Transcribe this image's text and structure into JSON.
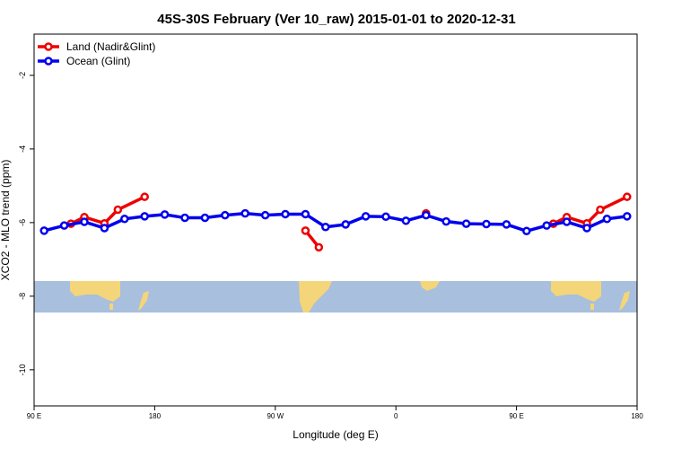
{
  "chart_data": {
    "type": "line",
    "title": "45S-30S February (Ver 10_raw)   2015-01-01 to 2020-12-31",
    "xlabel": "Longitude (deg E)",
    "ylabel": "XCO2 - MLO trend (ppm)",
    "xlim": [
      90,
      540
    ],
    "ylim": [
      -10.98,
      -0.88
    ],
    "xticks": [
      {
        "value": 90,
        "label": "90 E"
      },
      {
        "value": 180,
        "label": "180"
      },
      {
        "value": 270,
        "label": "90 W"
      },
      {
        "value": 360,
        "label": "0"
      },
      {
        "value": 450,
        "label": "90 E"
      },
      {
        "value": 540,
        "label": "180"
      }
    ],
    "yticks": [
      -2,
      -4,
      -6,
      -8,
      -10
    ],
    "legend": "top-left",
    "series": [
      {
        "name": "Land (Nadir&Glint)",
        "color": "#ee0000",
        "x": [
          117.5,
          127.5,
          142.5,
          152.5,
          172.5,
          null,
          292.5,
          302.5,
          null,
          382.5,
          null,
          477.5,
          487.5,
          502.5,
          512.5,
          532.5
        ],
        "values": [
          -6.03,
          -5.85,
          -6.02,
          -5.65,
          -5.3,
          null,
          -6.22,
          -6.67,
          null,
          -5.75,
          null,
          -6.03,
          -5.85,
          -6.02,
          -5.65,
          -5.3
        ]
      },
      {
        "name": "Ocean (Glint)",
        "color": "#0000ee",
        "x": [
          97.5,
          112.5,
          127.5,
          142.5,
          157.5,
          172.5,
          187.5,
          202.5,
          217.5,
          232.5,
          247.5,
          262.5,
          277.5,
          292.5,
          307.5,
          322.5,
          337.5,
          352.5,
          367.5,
          382.5,
          397.5,
          412.5,
          427.5,
          442.5,
          457.5,
          472.5,
          487.5,
          502.5,
          517.5,
          532.5
        ],
        "values": [
          -6.22,
          -6.08,
          -5.98,
          -6.15,
          -5.9,
          -5.83,
          -5.78,
          -5.87,
          -5.87,
          -5.8,
          -5.75,
          -5.8,
          -5.77,
          -5.77,
          -6.12,
          -6.05,
          -5.83,
          -5.84,
          -5.95,
          -5.8,
          -5.97,
          -6.03,
          -6.04,
          -6.05,
          -6.23,
          -6.08,
          -5.98,
          -6.15,
          -5.9,
          -5.83
        ]
      }
    ]
  }
}
